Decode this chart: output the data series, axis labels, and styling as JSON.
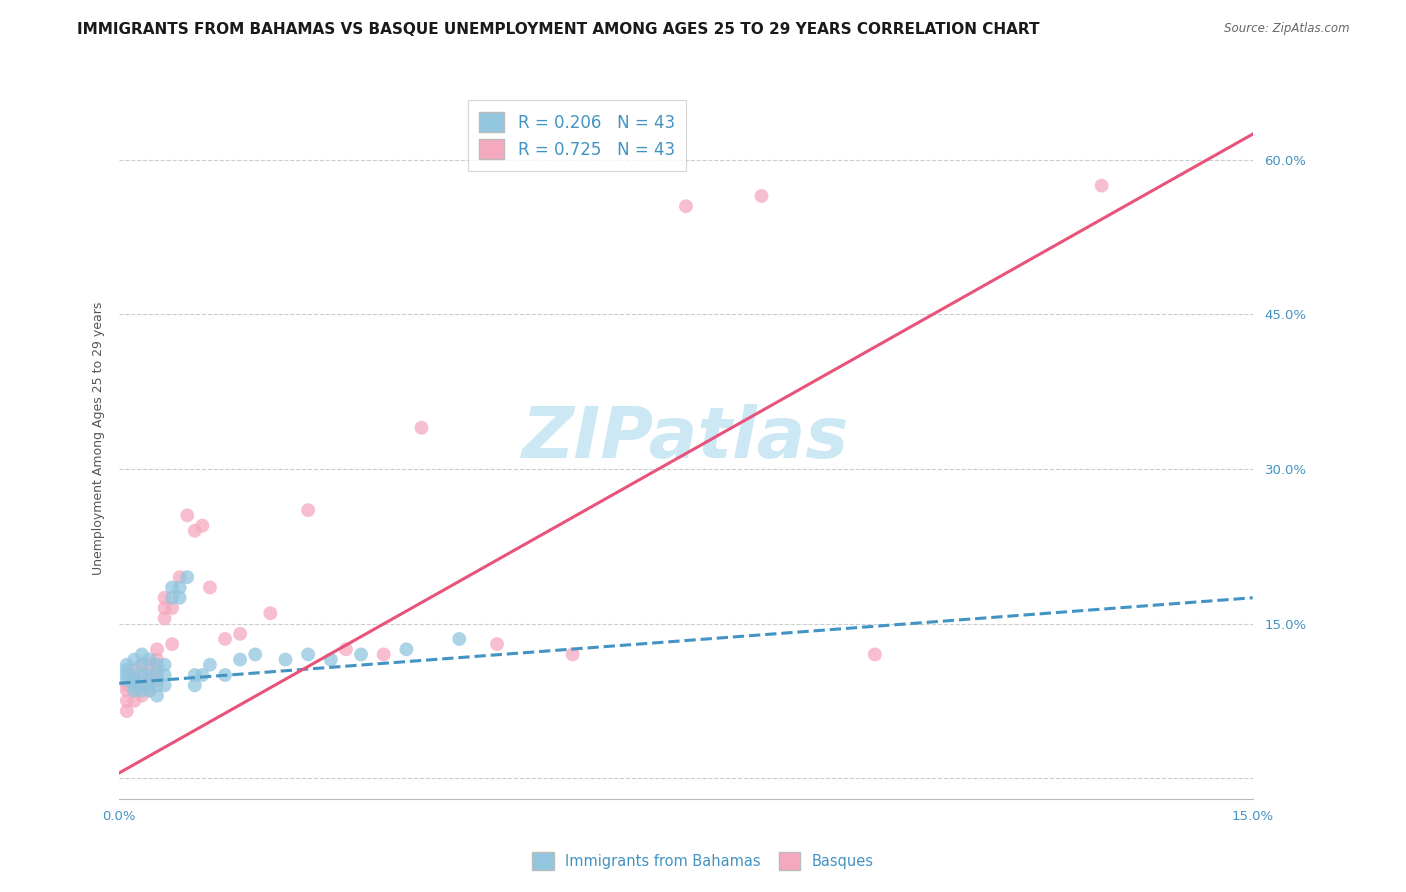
{
  "title": "IMMIGRANTS FROM BAHAMAS VS BASQUE UNEMPLOYMENT AMONG AGES 25 TO 29 YEARS CORRELATION CHART",
  "source": "Source: ZipAtlas.com",
  "ylabel": "Unemployment Among Ages 25 to 29 years",
  "xlim": [
    0.0,
    0.15
  ],
  "ylim": [
    -0.02,
    0.68
  ],
  "yticks": [
    0.0,
    0.15,
    0.3,
    0.45,
    0.6
  ],
  "ytick_labels": [
    "",
    "15.0%",
    "30.0%",
    "45.0%",
    "60.0%"
  ],
  "legend_r1": "R = 0.206",
  "legend_n1": "N = 43",
  "legend_r2": "R = 0.725",
  "legend_n2": "N = 43",
  "color_blue": "#92c5de",
  "color_pink": "#f4a9be",
  "color_blue_text": "#4393c3",
  "color_pink_line": "#e8537a",
  "color_blue_line": "#4393c3",
  "background": "#ffffff",
  "watermark_text": "ZIPatlas",
  "blue_scatter_x": [
    0.001,
    0.001,
    0.001,
    0.001,
    0.002,
    0.002,
    0.002,
    0.002,
    0.002,
    0.003,
    0.003,
    0.003,
    0.003,
    0.003,
    0.004,
    0.004,
    0.004,
    0.004,
    0.005,
    0.005,
    0.005,
    0.005,
    0.006,
    0.006,
    0.006,
    0.007,
    0.007,
    0.008,
    0.008,
    0.009,
    0.01,
    0.01,
    0.011,
    0.012,
    0.014,
    0.016,
    0.018,
    0.022,
    0.025,
    0.028,
    0.032,
    0.038,
    0.045
  ],
  "blue_scatter_y": [
    0.095,
    0.1,
    0.105,
    0.11,
    0.085,
    0.09,
    0.095,
    0.1,
    0.115,
    0.085,
    0.09,
    0.1,
    0.11,
    0.12,
    0.085,
    0.09,
    0.1,
    0.115,
    0.08,
    0.09,
    0.1,
    0.11,
    0.09,
    0.1,
    0.11,
    0.175,
    0.185,
    0.175,
    0.185,
    0.195,
    0.09,
    0.1,
    0.1,
    0.11,
    0.1,
    0.115,
    0.12,
    0.115,
    0.12,
    0.115,
    0.12,
    0.125,
    0.135
  ],
  "pink_scatter_x": [
    0.001,
    0.001,
    0.001,
    0.001,
    0.002,
    0.002,
    0.002,
    0.002,
    0.003,
    0.003,
    0.003,
    0.003,
    0.004,
    0.004,
    0.004,
    0.004,
    0.005,
    0.005,
    0.005,
    0.005,
    0.006,
    0.006,
    0.006,
    0.007,
    0.007,
    0.008,
    0.009,
    0.01,
    0.011,
    0.012,
    0.014,
    0.016,
    0.02,
    0.025,
    0.03,
    0.035,
    0.04,
    0.05,
    0.06,
    0.075,
    0.085,
    0.1,
    0.13
  ],
  "pink_scatter_y": [
    0.065,
    0.075,
    0.085,
    0.09,
    0.075,
    0.085,
    0.095,
    0.105,
    0.08,
    0.09,
    0.1,
    0.11,
    0.085,
    0.095,
    0.1,
    0.11,
    0.095,
    0.105,
    0.115,
    0.125,
    0.155,
    0.165,
    0.175,
    0.13,
    0.165,
    0.195,
    0.255,
    0.24,
    0.245,
    0.185,
    0.135,
    0.14,
    0.16,
    0.26,
    0.125,
    0.12,
    0.34,
    0.13,
    0.12,
    0.555,
    0.565,
    0.12,
    0.575
  ],
  "blue_line_x": [
    0.0,
    0.15
  ],
  "blue_line_y": [
    0.092,
    0.175
  ],
  "pink_line_x": [
    0.0,
    0.15
  ],
  "pink_line_y": [
    0.005,
    0.625
  ],
  "gridline_color": "#cccccc",
  "title_fontsize": 11,
  "label_fontsize": 9,
  "tick_fontsize": 9.5,
  "watermark_fontsize": 52,
  "watermark_color": "#cde8f5",
  "legend_fontsize": 12
}
